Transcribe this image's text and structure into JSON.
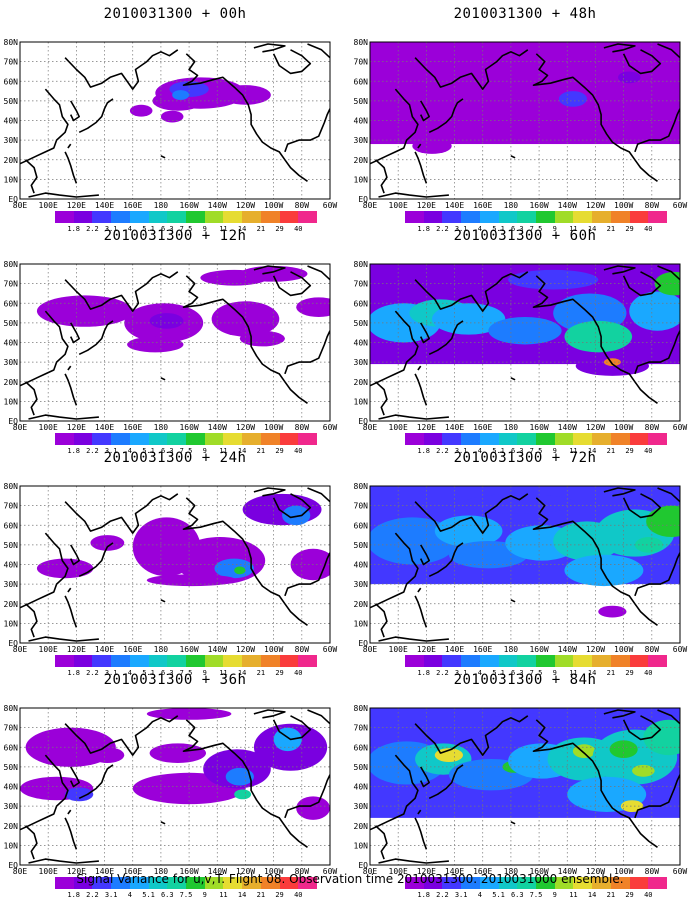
{
  "panels": [
    {
      "title": "2010031300 + 00h"
    },
    {
      "title": "2010031300 + 48h"
    },
    {
      "title": "2010031300 + 12h"
    },
    {
      "title": "2010031300 + 60h"
    },
    {
      "title": "2010031300 + 24h"
    },
    {
      "title": "2010031300 + 72h"
    },
    {
      "title": "2010031300 + 36h"
    },
    {
      "title": "2010031300 + 84h"
    }
  ],
  "map": {
    "lat_labels": [
      "80N",
      "70N",
      "60N",
      "50N",
      "40N",
      "30N",
      "20N",
      "10N",
      "EQ"
    ],
    "lon_labels": [
      "80E",
      "100E",
      "120E",
      "140E",
      "160E",
      "180",
      "160W",
      "140W",
      "120W",
      "100W",
      "80W",
      "60W"
    ]
  },
  "colorbar": {
    "labels": [
      "1.8",
      "2.2",
      "3.1",
      "4",
      "5.1",
      "6.3",
      "7.5",
      "9",
      "11",
      "14",
      "21",
      "29",
      "40"
    ],
    "colors": [
      "#9b00d9",
      "#7a00e0",
      "#4338ff",
      "#1d7cff",
      "#1aa8ff",
      "#10c8c8",
      "#12d2a0",
      "#20c830",
      "#a0dc28",
      "#e6dc32",
      "#e6af2d",
      "#f08228",
      "#fa3c3c",
      "#f0288c"
    ]
  },
  "footer": "Signal Variance for u,v,T. Flight 08. Observation time 2010031300. 2010031000 ensemble."
}
